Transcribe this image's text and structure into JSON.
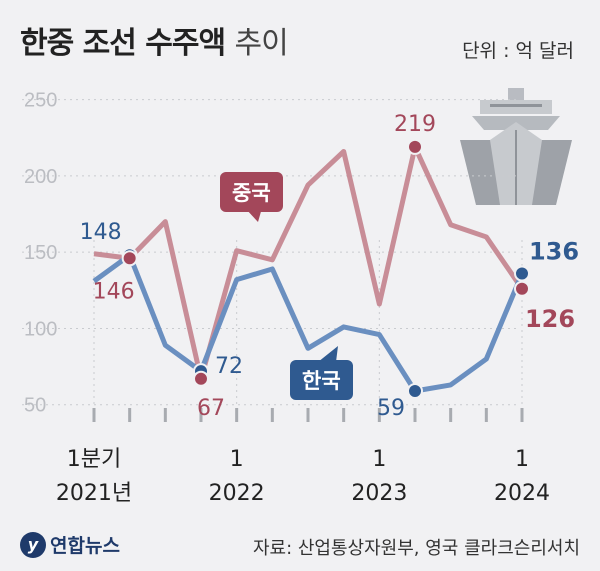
{
  "title_bold": "한중 조선 수주액",
  "title_light": "추이",
  "unit": "단위 : 억 달러",
  "source": "자료: 산업통상자원부, 영국 클라크슨리서치",
  "logo_text": "연합뉴스",
  "colors": {
    "china": "#c88d97",
    "korea": "#6a8fc0",
    "china_dark": "#a3475a",
    "korea_dark": "#2f5a90"
  },
  "chart_data": {
    "type": "line",
    "x": [
      "2021Q1",
      "2021Q2",
      "2021Q3",
      "2021Q4",
      "2022Q1",
      "2022Q2",
      "2022Q3",
      "2022Q4",
      "2023Q1",
      "2023Q2",
      "2023Q3",
      "2023Q4",
      "2024Q1"
    ],
    "ylim": [
      40,
      255
    ],
    "yticks": [
      50,
      100,
      150,
      200,
      250
    ],
    "x_tick_labels": [
      {
        "index": 0,
        "line1": "1분기",
        "line2": "2021년"
      },
      {
        "index": 4,
        "line1": "1",
        "line2": "2022"
      },
      {
        "index": 8,
        "line1": "1",
        "line2": "2023"
      },
      {
        "index": 12,
        "line1": "1",
        "line2": "2024"
      }
    ],
    "series": [
      {
        "name": "중국",
        "values": [
          149,
          146,
          170,
          67,
          151,
          145,
          194,
          216,
          116,
          219,
          168,
          160,
          126
        ]
      },
      {
        "name": "한국",
        "values": [
          131,
          148,
          89,
          72,
          132,
          139,
          87,
          101,
          96,
          59,
          63,
          80,
          136
        ]
      }
    ],
    "data_labels": [
      {
        "series": 1,
        "index": 1,
        "text": "148"
      },
      {
        "series": 0,
        "index": 1,
        "text": "146"
      },
      {
        "series": 1,
        "index": 3,
        "text": "72"
      },
      {
        "series": 0,
        "index": 3,
        "text": "67"
      },
      {
        "series": 0,
        "index": 9,
        "text": "219"
      },
      {
        "series": 1,
        "index": 9,
        "text": "59"
      },
      {
        "series": 1,
        "index": 12,
        "text": "136"
      },
      {
        "series": 0,
        "index": 12,
        "text": "126"
      }
    ]
  }
}
